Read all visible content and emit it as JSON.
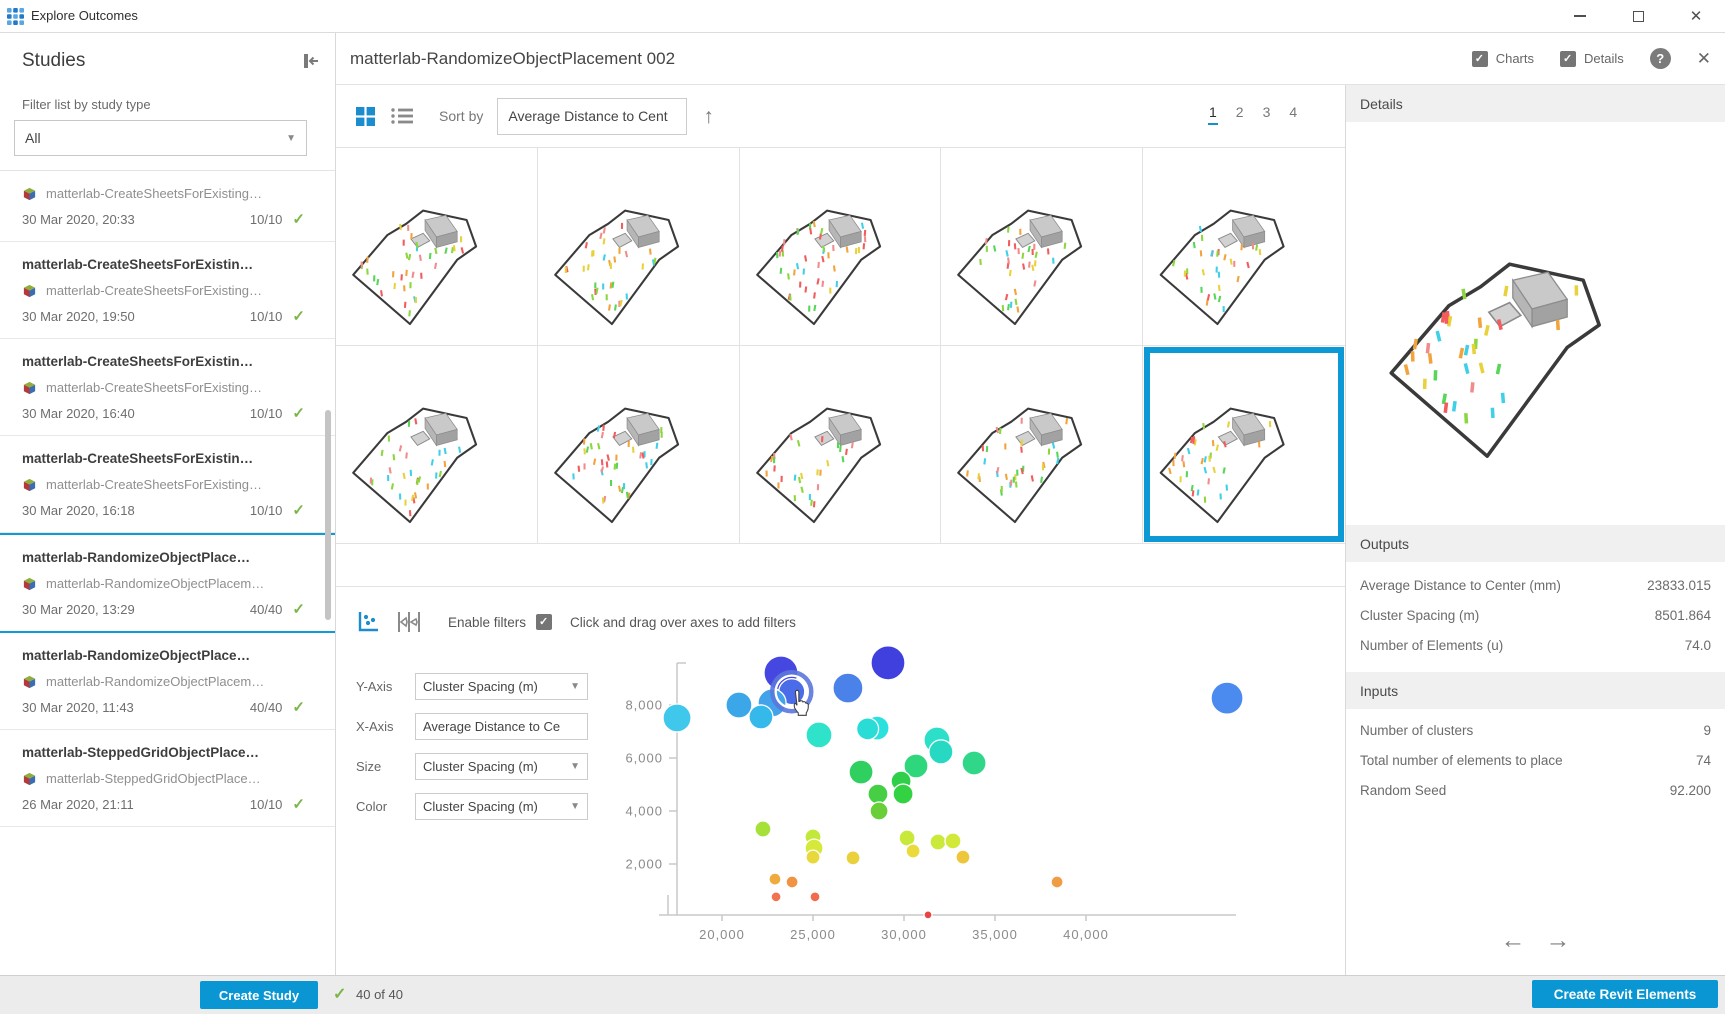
{
  "window": {
    "title": "Explore Outcomes"
  },
  "sidebar": {
    "header": "Studies",
    "filter_label": "Filter list by study type",
    "filter_value": "All",
    "studies": [
      {
        "title": "",
        "name": "matterlab-CreateSheetsForExisting…",
        "date": "30 Mar 2020, 20:33",
        "count": "10/10",
        "selected": false
      },
      {
        "title": "matterlab-CreateSheetsForExistin…",
        "name": "matterlab-CreateSheetsForExisting…",
        "date": "30 Mar 2020, 19:50",
        "count": "10/10",
        "selected": false
      },
      {
        "title": "matterlab-CreateSheetsForExistin…",
        "name": "matterlab-CreateSheetsForExisting…",
        "date": "30 Mar 2020, 16:40",
        "count": "10/10",
        "selected": false
      },
      {
        "title": "matterlab-CreateSheetsForExistin…",
        "name": "matterlab-CreateSheetsForExisting…",
        "date": "30 Mar 2020, 16:18",
        "count": "10/10",
        "selected": false
      },
      {
        "title": "matterlab-RandomizeObjectPlace…",
        "name": "matterlab-RandomizeObjectPlacem…",
        "date": "30 Mar 2020, 13:29",
        "count": "40/40",
        "selected": true
      },
      {
        "title": "matterlab-RandomizeObjectPlace…",
        "name": "matterlab-RandomizeObjectPlacem…",
        "date": "30 Mar 2020, 11:43",
        "count": "40/40",
        "selected": false
      },
      {
        "title": "matterlab-SteppedGridObjectPlace…",
        "name": "matterlab-SteppedGridObjectPlace…",
        "date": "26 Mar 2020, 21:11",
        "count": "10/10",
        "selected": false
      }
    ],
    "create_button": "Create Study"
  },
  "header": {
    "title": "matterlab-RandomizeObjectPlacement 002",
    "charts_label": "Charts",
    "details_label": "Details"
  },
  "toolbar": {
    "sort_label": "Sort by",
    "sort_value": "Average Distance to Cent",
    "pages": [
      "1",
      "2",
      "3",
      "4"
    ],
    "active_page": "1"
  },
  "thumbnails": {
    "count": 10,
    "selected_index": 9
  },
  "chart_panel": {
    "enable_filters_label": "Enable filters",
    "hint": "Click and drag over axes to add filters",
    "axes": [
      {
        "label": "Y-Axis",
        "value": "Cluster Spacing (m)",
        "caret": true
      },
      {
        "label": "X-Axis",
        "value": "Average Distance to Ce",
        "caret": false
      },
      {
        "label": "Size",
        "value": "Cluster Spacing (m)",
        "caret": true
      },
      {
        "label": "Color",
        "value": "Cluster Spacing (m)",
        "caret": true
      }
    ]
  },
  "chart_data": {
    "type": "scatter",
    "x_field": "Average Distance to Center (mm)",
    "y_field": "Cluster Spacing (m)",
    "size_field": "Cluster Spacing (m)",
    "color_field": "Cluster Spacing (m)",
    "x_ticks": [
      20000,
      25000,
      30000,
      35000,
      40000
    ],
    "y_ticks": [
      2000,
      4000,
      6000,
      8000
    ],
    "xlim": [
      16500,
      48200
    ],
    "ylim": [
      0,
      9800
    ],
    "points": [
      {
        "x": 23240,
        "y": 9210,
        "r": 17,
        "color": "#4647e0"
      },
      {
        "x": 23833,
        "y": 8502,
        "r": 13,
        "color": "#4b6ce8",
        "selected": true
      },
      {
        "x": 26920,
        "y": 8640,
        "r": 15,
        "color": "#4b82ea"
      },
      {
        "x": 29120,
        "y": 9590,
        "r": 17,
        "color": "#3f40dd"
      },
      {
        "x": 47750,
        "y": 8260,
        "r": 16,
        "color": "#4b8bf0"
      },
      {
        "x": 20930,
        "y": 8000,
        "r": 13,
        "color": "#3ba6e8"
      },
      {
        "x": 22750,
        "y": 8080,
        "r": 14,
        "color": "#42a2ea"
      },
      {
        "x": 22140,
        "y": 7550,
        "r": 12,
        "color": "#35b8ea"
      },
      {
        "x": 17530,
        "y": 7510,
        "r": 14,
        "color": "#3fc8ec"
      },
      {
        "x": 25330,
        "y": 6870,
        "r": 13,
        "color": "#2fe3cb"
      },
      {
        "x": 28520,
        "y": 7130,
        "r": 12,
        "color": "#2ae1de"
      },
      {
        "x": 28000,
        "y": 7100,
        "r": 11,
        "color": "#29ddd6"
      },
      {
        "x": 31810,
        "y": 6680,
        "r": 13,
        "color": "#2cdfc9"
      },
      {
        "x": 32030,
        "y": 6230,
        "r": 12,
        "color": "#27d9c2"
      },
      {
        "x": 27640,
        "y": 5470,
        "r": 12,
        "color": "#2fd060"
      },
      {
        "x": 30660,
        "y": 5700,
        "r": 12,
        "color": "#2fd77c"
      },
      {
        "x": 33850,
        "y": 5810,
        "r": 12,
        "color": "#30d789"
      },
      {
        "x": 29840,
        "y": 5130,
        "r": 10,
        "color": "#2fcf4a"
      },
      {
        "x": 29950,
        "y": 4640,
        "r": 10,
        "color": "#33d243"
      },
      {
        "x": 28570,
        "y": 4640,
        "r": 10,
        "color": "#46ce45"
      },
      {
        "x": 28630,
        "y": 4000,
        "r": 9,
        "color": "#69cf39"
      },
      {
        "x": 22250,
        "y": 3320,
        "r": 8,
        "color": "#a6e13a"
      },
      {
        "x": 25000,
        "y": 3020,
        "r": 8,
        "color": "#c2e939"
      },
      {
        "x": 25060,
        "y": 2600,
        "r": 9,
        "color": "#d6e93a"
      },
      {
        "x": 25000,
        "y": 2260,
        "r": 7,
        "color": "#e9d83b"
      },
      {
        "x": 27200,
        "y": 2230,
        "r": 7,
        "color": "#ead03b"
      },
      {
        "x": 30170,
        "y": 2980,
        "r": 8,
        "color": "#c8e93a"
      },
      {
        "x": 30500,
        "y": 2490,
        "r": 7,
        "color": "#eadb3d"
      },
      {
        "x": 31870,
        "y": 2830,
        "r": 8,
        "color": "#cbe93b"
      },
      {
        "x": 32690,
        "y": 2870,
        "r": 8,
        "color": "#d2e93a"
      },
      {
        "x": 33240,
        "y": 2260,
        "r": 7,
        "color": "#eec63c"
      },
      {
        "x": 22910,
        "y": 1430,
        "r": 6,
        "color": "#f0ab3e"
      },
      {
        "x": 23850,
        "y": 1320,
        "r": 6,
        "color": "#f09342"
      },
      {
        "x": 22970,
        "y": 760,
        "r": 5,
        "color": "#f2734f"
      },
      {
        "x": 25110,
        "y": 760,
        "r": 5,
        "color": "#f06c4b"
      },
      {
        "x": 38410,
        "y": 1320,
        "r": 6,
        "color": "#f09c45"
      },
      {
        "x": 31320,
        "y": 80,
        "r": 4,
        "color": "#e84444"
      }
    ]
  },
  "details": {
    "panel_title": "Details",
    "outputs_title": "Outputs",
    "outputs": [
      {
        "label": "Average Distance to Center (mm)",
        "value": "23833.015"
      },
      {
        "label": "Cluster Spacing (m)",
        "value": "8501.864"
      },
      {
        "label": "Number of Elements (u)",
        "value": "74.0"
      }
    ],
    "inputs_title": "Inputs",
    "inputs": [
      {
        "label": "Number of clusters",
        "value": "9"
      },
      {
        "label": "Total number of elements to place",
        "value": "74"
      },
      {
        "label": "Random Seed",
        "value": "92.200"
      }
    ]
  },
  "footer": {
    "count": "40 of 40",
    "create_revit": "Create Revit Elements"
  },
  "colors": {
    "accent": "#0a96d2",
    "selection": "#0c99d6",
    "success": "#7ab648"
  }
}
